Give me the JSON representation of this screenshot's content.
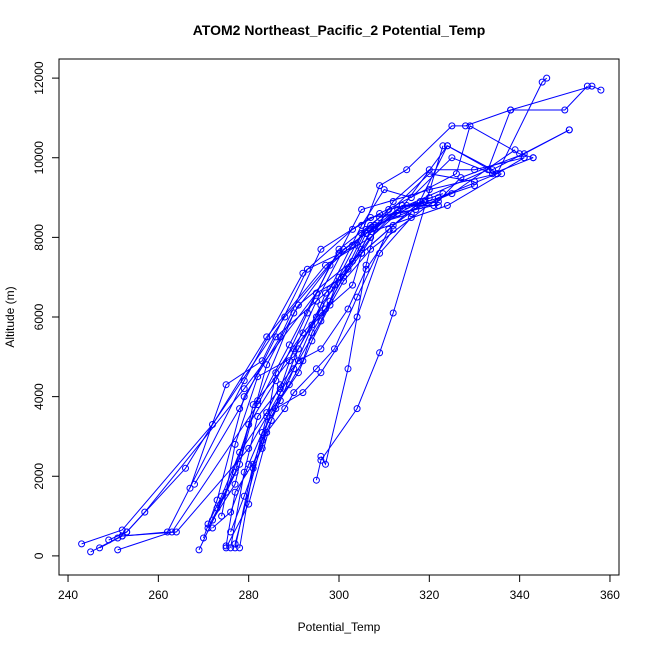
{
  "chart_data": {
    "type": "line",
    "title": "ATOM2 Northeast_Pacific_2 Potential_Temp",
    "xlabel": "Potential_Temp",
    "ylabel": "Altitude (m)",
    "xlim": [
      238,
      362
    ],
    "ylim": [
      -480,
      12480
    ],
    "xticks": [
      240,
      260,
      280,
      300,
      320,
      340,
      360
    ],
    "yticks": [
      0,
      2000,
      4000,
      6000,
      8000,
      10000,
      12000
    ],
    "grid": false,
    "markers": "open-circle",
    "line_color": "#0000ff",
    "series": [
      {
        "x": [
          243,
          252,
          272,
          288,
          300,
          305,
          320,
          335,
          345,
          346
        ],
        "y": [
          300,
          650,
          3300,
          6000,
          7600,
          8700,
          9200,
          9600,
          11900,
          12000
        ]
      },
      {
        "x": [
          245,
          251,
          253,
          266,
          284,
          297,
          307,
          315,
          333,
          338,
          350,
          355
        ],
        "y": [
          100,
          450,
          600,
          2200,
          5500,
          7300,
          8000,
          8800,
          9700,
          11200,
          11200,
          11800
        ]
      },
      {
        "x": [
          247,
          252,
          262,
          279,
          292,
          303,
          309,
          326,
          329,
          340,
          343
        ],
        "y": [
          200,
          500,
          600,
          4400,
          7100,
          8200,
          8600,
          9600,
          10800,
          10100,
          10000
        ]
      },
      {
        "x": [
          249,
          253,
          257,
          279,
          295,
          301,
          308,
          320,
          330
        ],
        "y": [
          400,
          600,
          1100,
          4200,
          6600,
          7000,
          8300,
          9600,
          9400
        ]
      },
      {
        "x": [
          251,
          263,
          282,
          289,
          300,
          309,
          321,
          327,
          341,
          351
        ],
        "y": [
          150,
          600,
          3800,
          5300,
          7700,
          8500,
          8800,
          9500,
          10100,
          10700
        ]
      },
      {
        "x": [
          252,
          264,
          280,
          296,
          306,
          325,
          339
        ],
        "y": [
          500,
          600,
          2700,
          5900,
          8200,
          9100,
          10200
        ]
      },
      {
        "x": [
          267,
          275,
          283,
          293,
          304,
          309,
          315,
          325,
          328,
          338,
          356,
          358
        ],
        "y": [
          1700,
          4300,
          4900,
          7200,
          7800,
          9300,
          9700,
          10800,
          10800,
          11200,
          11800,
          11700
        ]
      },
      {
        "x": [
          268,
          278,
          286,
          298,
          305,
          310,
          316,
          325,
          334,
          343
        ],
        "y": [
          1800,
          3700,
          5500,
          6700,
          8300,
          9200,
          9000,
          10000,
          9600,
          10000
        ]
      },
      {
        "x": [
          269,
          278,
          284,
          291,
          305,
          312,
          320,
          330,
          341
        ],
        "y": [
          150,
          2300,
          4800,
          6300,
          7600,
          8900,
          9700,
          9700,
          10000
        ]
      },
      {
        "x": [
          270,
          273,
          279,
          287,
          296,
          307,
          317,
          324,
          334,
          351
        ],
        "y": [
          450,
          1400,
          4000,
          5500,
          7700,
          8500,
          8700,
          10300,
          9700,
          10700
        ]
      },
      {
        "x": [
          271,
          275,
          282,
          290,
          300,
          306,
          313,
          324,
          335,
          341
        ],
        "y": [
          700,
          1600,
          3900,
          6100,
          7600,
          8100,
          8600,
          10300,
          9600,
          10000
        ]
      },
      {
        "x": [
          272,
          277,
          281,
          289,
          295,
          301,
          306,
          314,
          322
        ],
        "y": [
          900,
          1800,
          3800,
          4900,
          6400,
          7700,
          8100,
          8800,
          8800
        ]
      },
      {
        "x": [
          273,
          277,
          280,
          286,
          293,
          298,
          303,
          307,
          316
        ],
        "y": [
          1200,
          2100,
          3300,
          4400,
          6100,
          7300,
          7800,
          8300,
          8600
        ]
      },
      {
        "x": [
          274,
          277,
          282,
          290,
          294,
          299,
          305,
          311,
          319
        ],
        "y": [
          1000,
          2800,
          4500,
          5000,
          5800,
          6800,
          8100,
          8700,
          8900
        ]
      },
      {
        "x": [
          275,
          280,
          285,
          287,
          291,
          296,
          302,
          307,
          313,
          319
        ],
        "y": [
          200,
          1300,
          3400,
          4100,
          5200,
          6300,
          7200,
          8000,
          8700,
          8900
        ]
      },
      {
        "x": [
          275,
          277,
          283,
          286,
          292,
          296,
          303,
          305,
          318,
          323
        ],
        "y": [
          250,
          1600,
          2700,
          4600,
          5600,
          6100,
          6800,
          7600,
          8900,
          9100
        ]
      },
      {
        "x": [
          276,
          279,
          282,
          287,
          290,
          297,
          301,
          305,
          312,
          318
        ],
        "y": [
          200,
          2100,
          3500,
          4200,
          5200,
          6200,
          7000,
          7600,
          8300,
          8800
        ]
      },
      {
        "x": [
          277,
          281,
          285,
          291,
          294,
          298,
          301,
          307,
          322,
          335
        ],
        "y": [
          200,
          2300,
          3600,
          4600,
          5400,
          6300,
          6900,
          7700,
          9000,
          9600
        ]
      },
      {
        "x": [
          277,
          283,
          287,
          290,
          295,
          297,
          303,
          306,
          324,
          336
        ],
        "y": [
          300,
          2900,
          3900,
          4700,
          6000,
          6600,
          7400,
          8100,
          8800,
          9600
        ]
      },
      {
        "x": [
          278,
          281,
          284,
          289,
          292,
          294,
          298,
          300,
          305,
          307,
          313,
          320
        ],
        "y": [
          200,
          2200,
          3500,
          4300,
          4900,
          5600,
          6400,
          7000,
          7700,
          8200,
          8600,
          9000
        ]
      },
      {
        "x": [
          276,
          279,
          284,
          288,
          290,
          295,
          299,
          304,
          311,
          317,
          330
        ],
        "y": [
          600,
          1500,
          3100,
          3700,
          4100,
          4700,
          5200,
          6500,
          8200,
          8800,
          9300
        ]
      },
      {
        "x": [
          272,
          276,
          280,
          283,
          286,
          292,
          296,
          304,
          309,
          316
        ],
        "y": [
          700,
          1100,
          2300,
          3100,
          3700,
          4100,
          4600,
          6000,
          7600,
          8500
        ]
      },
      {
        "x": [
          271,
          274,
          278,
          284,
          287,
          291,
          296,
          302,
          306,
          312
        ],
        "y": [
          800,
          1500,
          2600,
          3600,
          4300,
          4900,
          5200,
          6200,
          7200,
          8200
        ]
      },
      {
        "x": [
          295,
          296,
          304,
          309,
          312,
          323
        ],
        "y": [
          1900,
          2400,
          3700,
          5100,
          6100,
          10300
        ]
      },
      {
        "x": [
          296,
          297,
          302,
          306,
          308,
          314,
          322
        ],
        "y": [
          2500,
          2300,
          4700,
          7300,
          8200,
          8800,
          8900
        ]
      }
    ]
  }
}
